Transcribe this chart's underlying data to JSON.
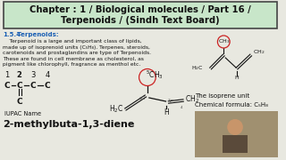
{
  "bg_color": "#e8e8e0",
  "title_box_color": "#c8e6c9",
  "title_border_color": "#444444",
  "title_line1": "Chapter : 1 / Biological molecules / Part 16 /",
  "title_line2": "Terpenoids / (Sindh Text Board)",
  "title_fontsize": 7.2,
  "section_label_num": "1.5.4",
  "section_label_text": "  Terpenoids:",
  "section_color": "#1a5fb4",
  "body_lines": [
    "    Terpenoid is a large and important class of lipids,",
    "made up of isoprenoid units (C₅H₈). Terpenes, steroids,",
    "carotenoids and prostaglandins are type of Terpenoids.",
    "These are found in cell membrane as cholesterol, as",
    "pigment like chlorophyll, fragrance as menthol etc."
  ],
  "body_fontsize": 4.3,
  "isoprene_label": "The isoprene unit",
  "chem_formula": "Chemical formula: C₅H₈",
  "iupac_label": "IUPAC Name",
  "iupac_name": "2-methylbuta-1,3-diene",
  "main_text_color": "#111111",
  "red_circle_color": "#cc2222"
}
